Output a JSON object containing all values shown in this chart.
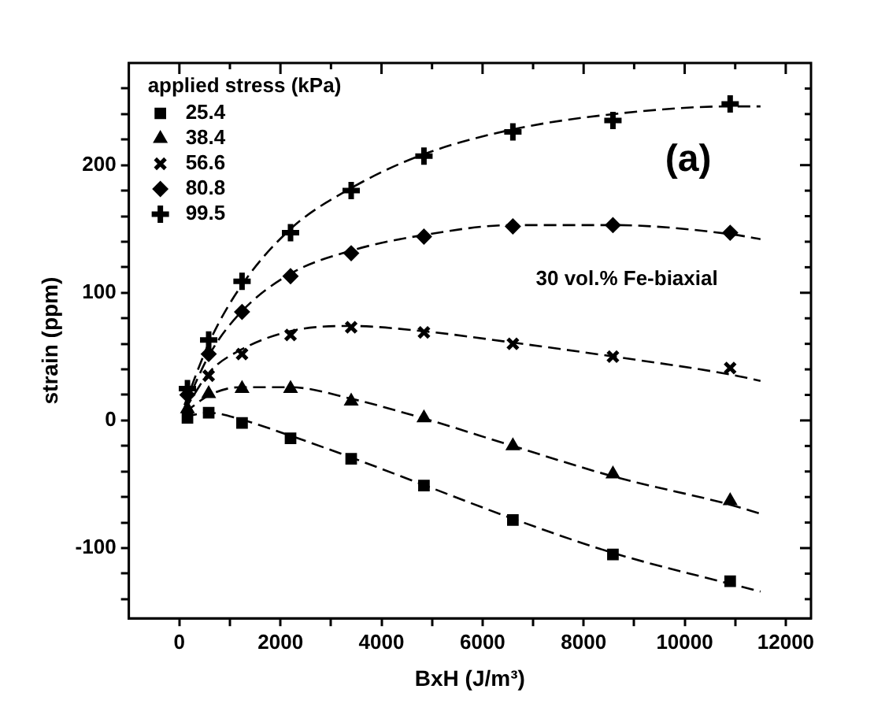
{
  "chart_data": {
    "type": "scatter",
    "xlabel": "BxH (J/m³)",
    "ylabel": "strain (ppm)",
    "legend_title": "applied stress (kPa)",
    "legend": "top left",
    "annotations": [
      "(a)",
      "30 vol.% Fe-biaxial"
    ],
    "xlim": [
      -1000,
      12500
    ],
    "xticks": [
      0,
      {
        "value": 1000,
        "label": null
      },
      2000,
      {
        "value": 3000,
        "label": null
      },
      4000,
      {
        "value": 5000,
        "label": null
      },
      6000,
      {
        "value": 7000,
        "label": null
      },
      8000,
      {
        "value": 9000,
        "label": null
      },
      10000,
      {
        "value": 11000,
        "label": null
      },
      12000
    ],
    "ylim": [
      -155,
      280
    ],
    "yticks": [
      {
        "value": -140,
        "label": null
      },
      {
        "value": -120,
        "label": null
      },
      -100,
      {
        "value": -80,
        "label": null
      },
      {
        "value": -60,
        "label": null
      },
      {
        "value": -40,
        "label": null
      },
      {
        "value": -20,
        "label": null
      },
      0,
      {
        "value": 20,
        "label": null
      },
      {
        "value": 40,
        "label": null
      },
      {
        "value": 60,
        "label": null
      },
      {
        "value": 80,
        "label": null
      },
      100,
      {
        "value": 120,
        "label": null
      },
      {
        "value": 140,
        "label": null
      },
      {
        "value": 160,
        "label": null
      },
      {
        "value": 180,
        "label": null
      },
      200,
      {
        "value": 220,
        "label": null
      },
      {
        "value": 240,
        "label": null
      },
      {
        "value": 260,
        "label": null
      }
    ],
    "x": [
      160,
      580,
      1240,
      2200,
      3400,
      4840,
      6600,
      8580,
      10900
    ],
    "series": [
      {
        "name": "25.4",
        "color": "#000000",
        "marker": "square",
        "values": [
          2,
          6,
          -2,
          -14,
          -30,
          -51,
          -78,
          -105,
          -126
        ]
      },
      {
        "name": "38.4",
        "color": "#000000",
        "marker": "triangle",
        "values": [
          9,
          21,
          25,
          25,
          15,
          2,
          -20,
          -42,
          -63
        ]
      },
      {
        "name": "56.6",
        "color": "#000000",
        "marker": "cross",
        "values": [
          null,
          35,
          52,
          67,
          73,
          69,
          60,
          50,
          41
        ]
      },
      {
        "name": "80.8",
        "color": "#000000",
        "marker": "diamond",
        "values": [
          20,
          52,
          85,
          113,
          131,
          144,
          152,
          153,
          147
        ]
      },
      {
        "name": "99.5",
        "color": "#000000",
        "marker": "cross",
        "values": [
          25,
          63,
          109,
          147,
          180,
          207,
          226,
          235,
          248
        ]
      },
      {
        "type": "line",
        "color": "#000000",
        "marker": "none",
        "line_style": "dashed",
        "x": [
          100,
          600,
          1200,
          2200,
          3400,
          4800,
          6600,
          8600,
          10900,
          11500
        ],
        "values": [
          3,
          6,
          1,
          -12,
          -29,
          -50,
          -77,
          -104,
          -128,
          -134
        ]
      },
      {
        "type": "line",
        "color": "#000000",
        "marker": "none",
        "line_style": "dashed",
        "x": [
          100,
          600,
          1200,
          2200,
          3400,
          4800,
          6600,
          8600,
          10900,
          11500
        ],
        "values": [
          6,
          20,
          26,
          26,
          17,
          2,
          -20,
          -44,
          -66,
          -73
        ]
      },
      {
        "type": "line",
        "color": "#000000",
        "marker": "none",
        "line_style": "dashed",
        "x": [
          100,
          600,
          1200,
          2200,
          3400,
          4800,
          6600,
          8600,
          10900,
          11500
        ],
        "values": [
          8,
          38,
          55,
          70,
          74,
          70,
          61,
          50,
          36,
          31
        ]
      },
      {
        "type": "line",
        "color": "#000000",
        "marker": "none",
        "line_style": "dashed",
        "x": [
          100,
          600,
          1200,
          2200,
          3400,
          4800,
          6600,
          8600,
          10900,
          11500
        ],
        "values": [
          10,
          52,
          84,
          115,
          133,
          145,
          153,
          153,
          146,
          142
        ]
      },
      {
        "type": "line",
        "color": "#000000",
        "marker": "none",
        "line_style": "dashed",
        "x": [
          100,
          600,
          1200,
          2200,
          3400,
          4800,
          6600,
          8600,
          10900,
          11500
        ],
        "values": [
          12,
          62,
          104,
          150,
          182,
          208,
          228,
          240,
          246,
          246
        ]
      }
    ]
  }
}
